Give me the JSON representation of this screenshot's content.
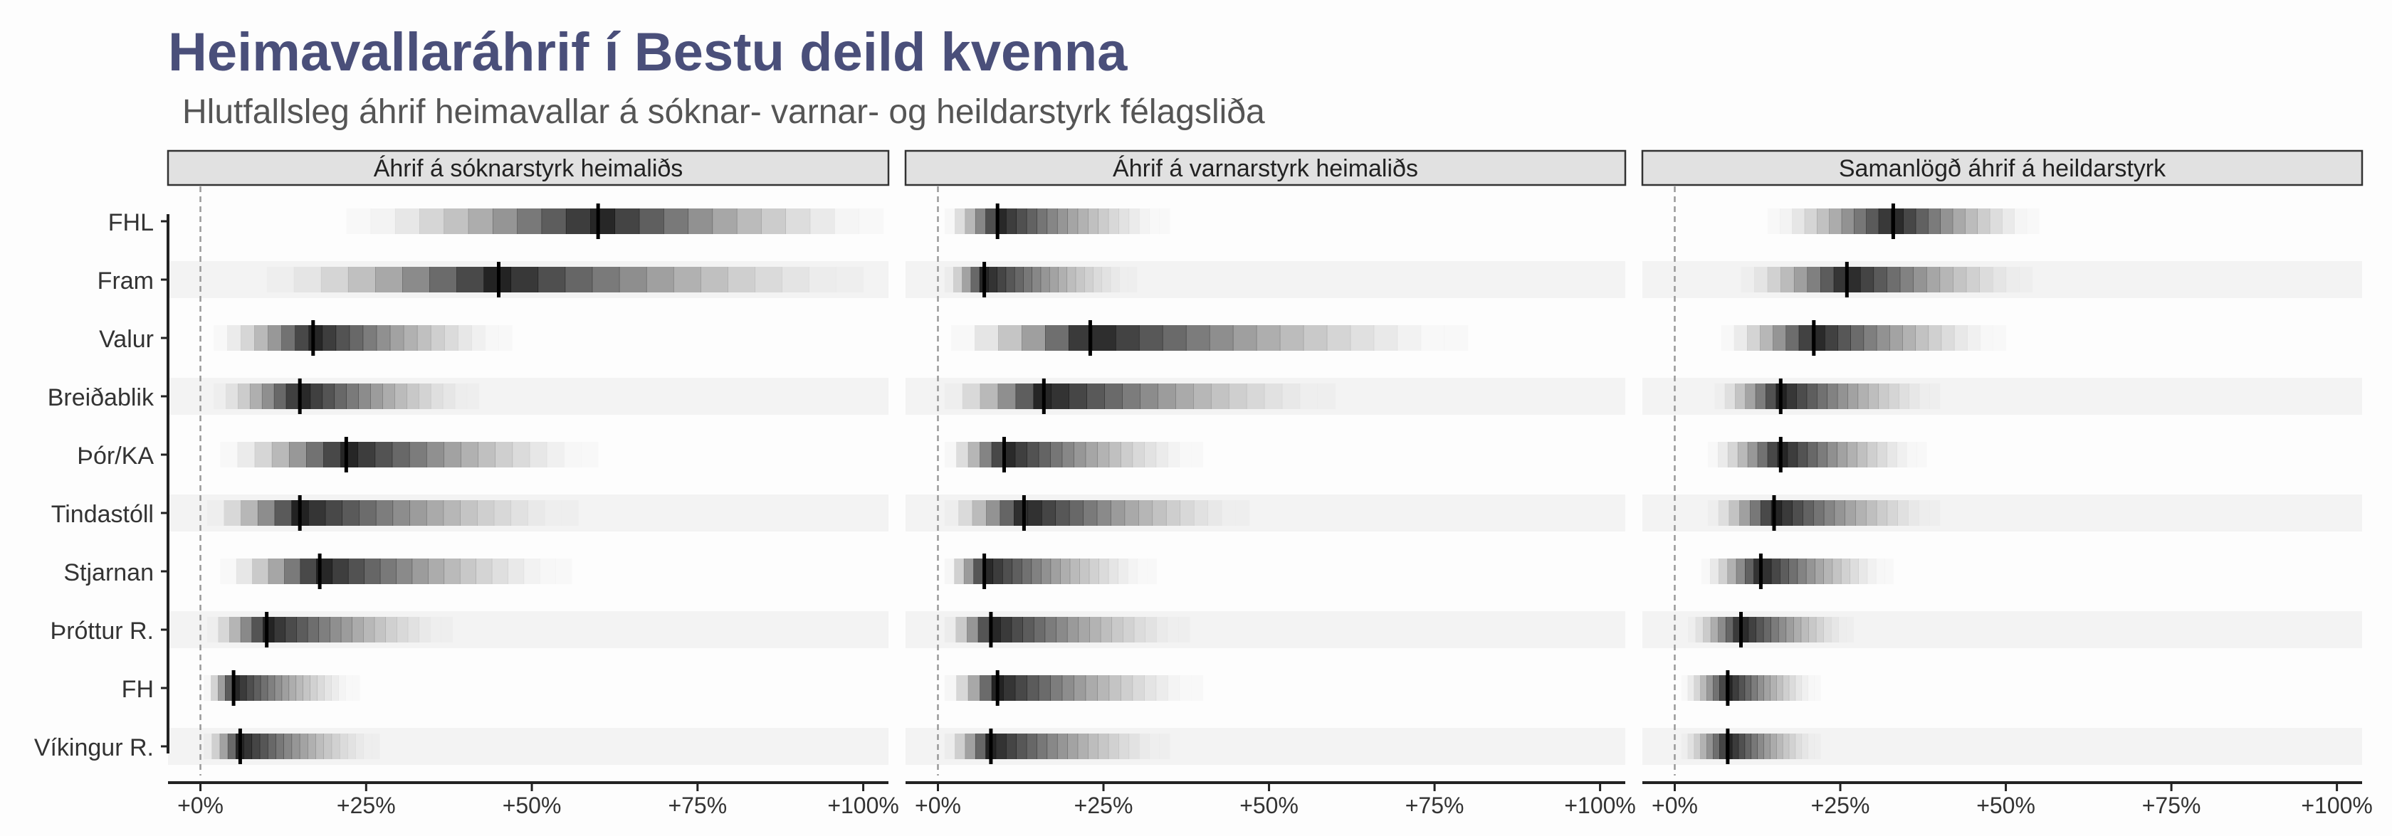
{
  "title": "Heimavallaráhrif í Bestu deild kvenna",
  "subtitle": "Hlutfallsleg áhrif heimavallar á sóknar- varnar- og heildarstyrk félagsliða",
  "chart_data": {
    "type": "interval",
    "teams": [
      "FHL",
      "Fram",
      "Valur",
      "Breiðablik",
      "Þór/KA",
      "Tindastóll",
      "Stjarnan",
      "Þróttur R.",
      "FH",
      "Víkingur R."
    ],
    "x_ticks": [
      "+0%",
      "+25%",
      "+50%",
      "+75%",
      "+100%"
    ],
    "xlim": [
      0,
      100
    ],
    "reference_line": 0,
    "facets": [
      {
        "label": "Áhrif á sóknarstyrk heimaliðs",
        "median": [
          60,
          45,
          17,
          15,
          22,
          15,
          18,
          10,
          5,
          6
        ],
        "low": [
          22,
          10,
          2,
          2,
          3,
          1,
          3,
          1,
          0.5,
          0.5
        ],
        "high": [
          103,
          100,
          47,
          42,
          60,
          57,
          56,
          38,
          24,
          27
        ]
      },
      {
        "label": "Áhrif á varnarstyrk heimaliðs",
        "median": [
          9,
          7,
          23,
          16,
          10,
          13,
          7,
          8,
          9,
          8
        ],
        "low": [
          1,
          1,
          2,
          1,
          1,
          1,
          1,
          1,
          1,
          1
        ],
        "high": [
          35,
          30,
          80,
          60,
          40,
          47,
          33,
          38,
          40,
          35
        ]
      },
      {
        "label": "Samanlögð áhrif á heildarstyrk",
        "median": [
          33,
          26,
          21,
          16,
          16,
          15,
          13,
          10,
          8,
          8
        ],
        "low": [
          14,
          10,
          7,
          6,
          5,
          5,
          4,
          2,
          1,
          1
        ],
        "high": [
          55,
          54,
          50,
          40,
          38,
          40,
          33,
          27,
          22,
          22
        ]
      }
    ]
  }
}
